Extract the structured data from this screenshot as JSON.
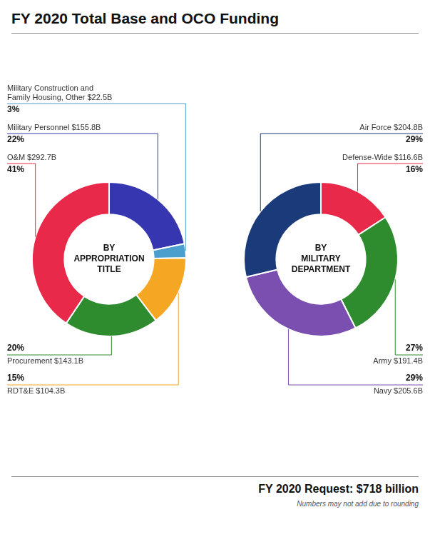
{
  "title": "FY 2020 Total Base and OCO Funding",
  "annotations": [
    "FY 2020 Request: $718 billion",
    "Numbers may not add due to rounding"
  ],
  "chart_data": [
    {
      "type": "doughnut",
      "title": "BY\nAPPROPRIATION\nTITLE",
      "categories": [
        "Military Personnel $155.8B",
        "Military Construction and\nFamily Housing, Other $22.5B",
        "RDT&E $104.3B",
        "Procurement $143.1B",
        "O&M $292.7B"
      ],
      "values": [
        22,
        3,
        15,
        20,
        41
      ],
      "value_labels": [
        "22%",
        "3%",
        "15%",
        "20%",
        "41%"
      ],
      "colors": [
        "#3636B0",
        "#4A9FCC",
        "#F5A623",
        "#2E8B2E",
        "#E8294A"
      ],
      "data_labels": true
    },
    {
      "type": "doughnut",
      "title": "BY\nMILITARY\nDEPARTMENT",
      "categories": [
        "Defense-Wide $116.6B",
        "Army $191.4B",
        "Navy $205.6B",
        "Air Force $204.8B"
      ],
      "values": [
        16,
        27,
        29,
        29
      ],
      "value_labels": [
        "16%",
        "27%",
        "29%",
        "29%"
      ],
      "colors": [
        "#E8294A",
        "#2E8B2E",
        "#7B4FB0",
        "#1A3A7A"
      ],
      "data_labels": true
    }
  ]
}
